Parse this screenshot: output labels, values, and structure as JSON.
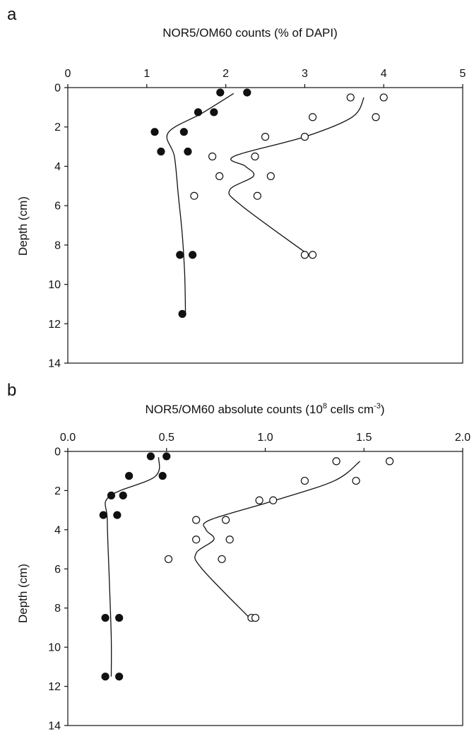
{
  "chart_data": [
    {
      "panel": "a",
      "type": "scatter",
      "xlabel": "NOR5/OM60 counts (% of DAPI)",
      "ylabel": "Depth (cm)",
      "xlim": [
        0,
        5
      ],
      "ylim": [
        0,
        14
      ],
      "x_axis_position": "top",
      "y_inverted": true,
      "grid": false,
      "x_ticks": [
        "0",
        "1",
        "2",
        "3",
        "4",
        "5"
      ],
      "y_ticks": [
        "0",
        "2",
        "4",
        "6",
        "8",
        "10",
        "12",
        "14"
      ],
      "series": [
        {
          "marker": "filled-circle",
          "points": [
            [
              1.93,
              0.25
            ],
            [
              2.27,
              0.25
            ],
            [
              1.65,
              1.25
            ],
            [
              1.85,
              1.25
            ],
            [
              1.1,
              2.25
            ],
            [
              1.47,
              2.25
            ],
            [
              1.18,
              3.25
            ],
            [
              1.52,
              3.25
            ],
            [
              1.42,
              8.5
            ],
            [
              1.58,
              8.5
            ],
            [
              1.45,
              11.5
            ]
          ],
          "fit": [
            [
              2.1,
              0.3
            ],
            [
              1.7,
              1.3
            ],
            [
              1.27,
              2.3
            ],
            [
              1.35,
              3.5
            ],
            [
              1.4,
              5.5
            ],
            [
              1.45,
              7.5
            ],
            [
              1.48,
              9.5
            ],
            [
              1.49,
              11.5
            ]
          ]
        },
        {
          "marker": "open-circle",
          "points": [
            [
              3.58,
              0.5
            ],
            [
              4.0,
              0.5
            ],
            [
              3.1,
              1.5
            ],
            [
              3.9,
              1.5
            ],
            [
              2.5,
              2.5
            ],
            [
              3.0,
              2.5
            ],
            [
              1.83,
              3.5
            ],
            [
              2.37,
              3.5
            ],
            [
              1.92,
              4.5
            ],
            [
              2.57,
              4.5
            ],
            [
              1.6,
              5.5
            ],
            [
              2.4,
              5.5
            ],
            [
              3.0,
              8.5
            ],
            [
              3.1,
              8.5
            ]
          ]
        }
      ]
    },
    {
      "panel": "b",
      "type": "scatter",
      "xlabel": "NOR5/OM60 absolute counts (10",
      "xlabel_sup": "8",
      "xlabel_mid": " cells cm",
      "xlabel_sup2": "-3",
      "xlabel_end": ")",
      "ylabel": "Depth (cm)",
      "xlim": [
        0.0,
        2.0
      ],
      "ylim": [
        0,
        14
      ],
      "x_axis_position": "top",
      "y_inverted": true,
      "grid": false,
      "x_ticks": [
        "0.0",
        "0.5",
        "1.0",
        "1.5",
        "2.0"
      ],
      "y_ticks": [
        "0",
        "2",
        "4",
        "6",
        "8",
        "10",
        "12",
        "14"
      ],
      "series": [
        {
          "marker": "filled-circle",
          "points": [
            [
              0.42,
              0.25
            ],
            [
              0.5,
              0.25
            ],
            [
              0.31,
              1.25
            ],
            [
              0.48,
              1.25
            ],
            [
              0.22,
              2.25
            ],
            [
              0.28,
              2.25
            ],
            [
              0.18,
              3.25
            ],
            [
              0.25,
              3.25
            ],
            [
              0.19,
              8.5
            ],
            [
              0.26,
              8.5
            ],
            [
              0.19,
              11.5
            ],
            [
              0.26,
              11.5
            ]
          ]
        },
        {
          "marker": "open-circle",
          "points": [
            [
              1.36,
              0.5
            ],
            [
              1.63,
              0.5
            ],
            [
              1.2,
              1.5
            ],
            [
              1.46,
              1.5
            ],
            [
              0.97,
              2.5
            ],
            [
              1.04,
              2.5
            ],
            [
              0.65,
              3.5
            ],
            [
              0.8,
              3.5
            ],
            [
              0.65,
              4.5
            ],
            [
              0.82,
              4.5
            ],
            [
              0.51,
              5.5
            ],
            [
              0.78,
              5.5
            ],
            [
              0.93,
              8.5
            ],
            [
              0.95,
              8.5
            ]
          ]
        }
      ]
    }
  ]
}
